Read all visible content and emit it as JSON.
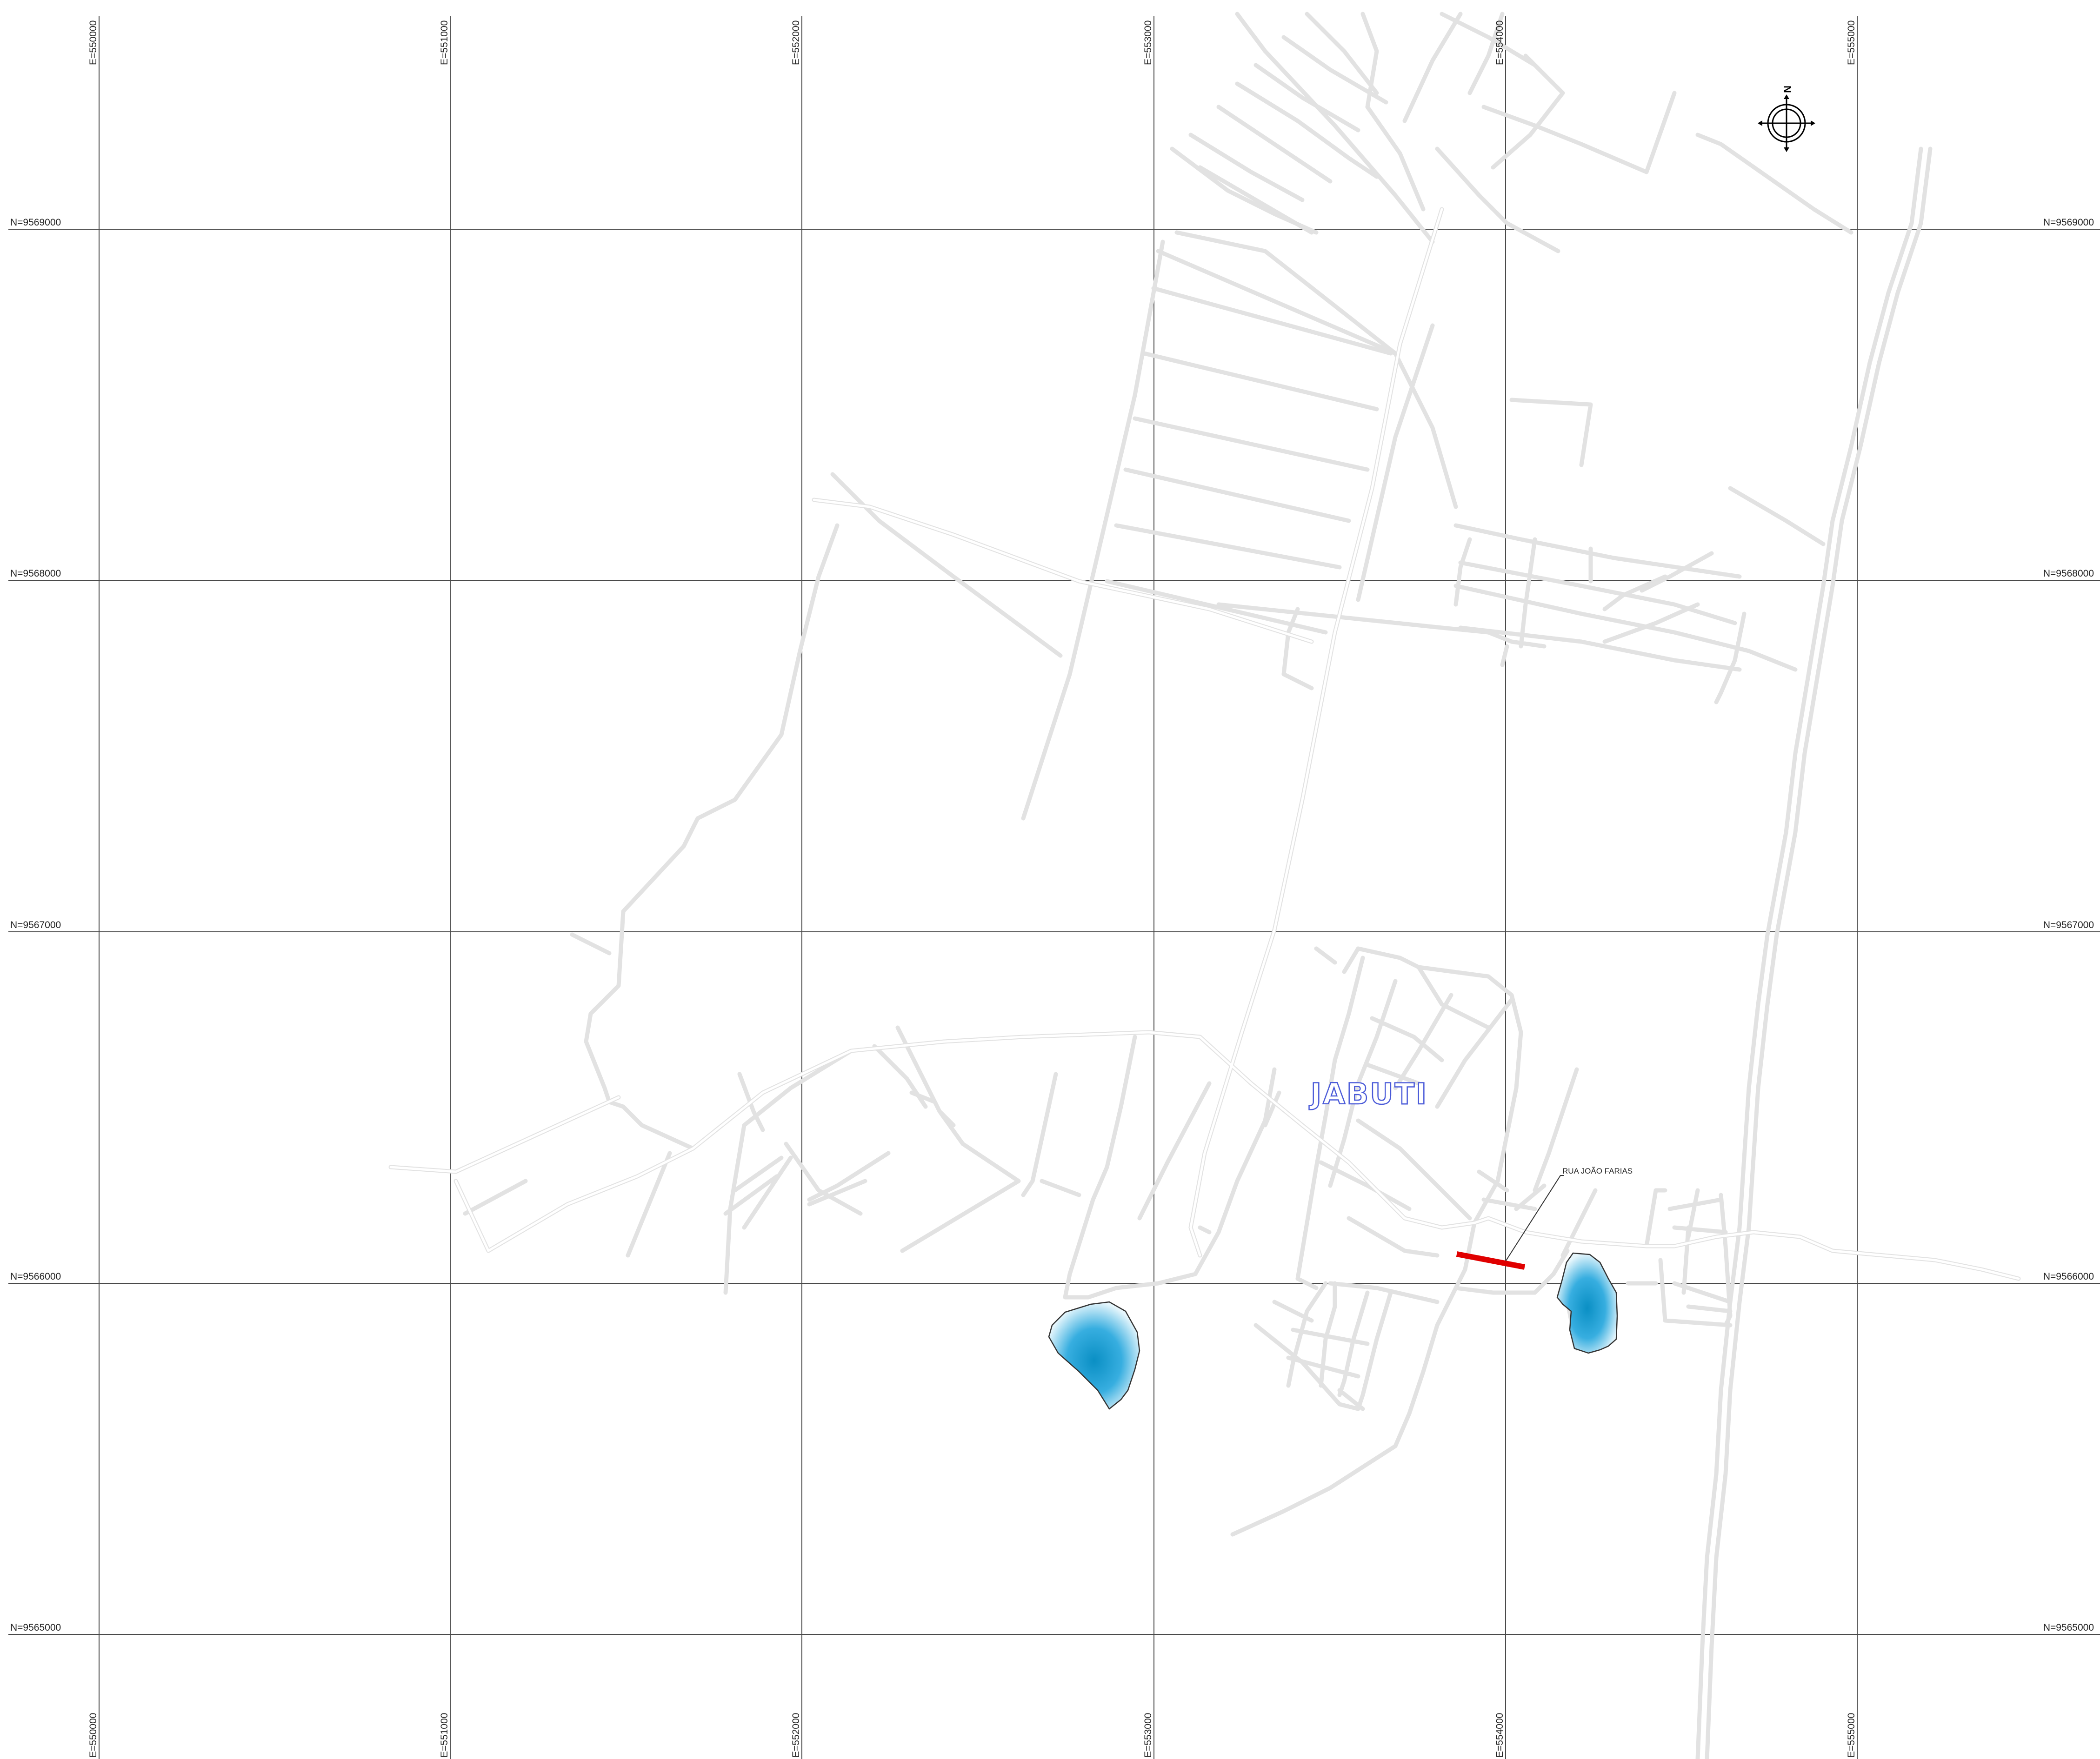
{
  "map": {
    "grid": {
      "easting_labels": [
        "E=550000",
        "E=551000",
        "E=552000",
        "E=553000",
        "E=554000",
        "E=555000"
      ],
      "northing_labels": [
        "N=9569000",
        "N=9568000",
        "N=9567000",
        "N=9566000",
        "N=9565000"
      ]
    },
    "place_name": "JABUTI",
    "street_label": "RUA JOÃO FARIAS",
    "colors": {
      "grid": "#4a4a4a",
      "roads": "#e2e2e2",
      "highlight": "#e00000",
      "water": "#1a9ccf",
      "place_name": "#4a5ad8"
    },
    "icons": {
      "north_arrow": "compass-north-arrow-icon"
    }
  }
}
